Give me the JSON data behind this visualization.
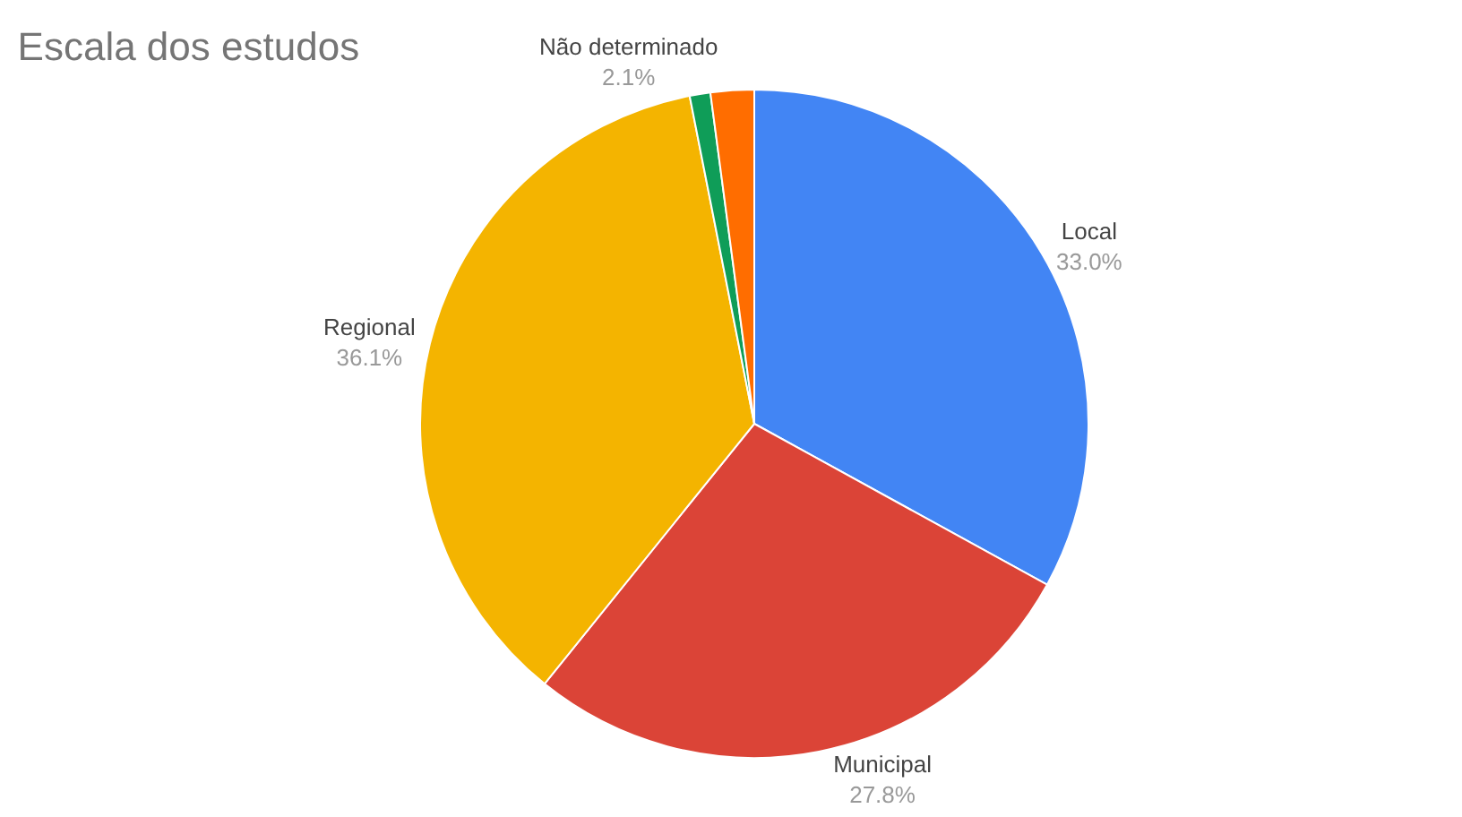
{
  "chart_data": {
    "type": "pie",
    "title": "Escala dos estudos",
    "categories": [
      "Local",
      "Municipal",
      "Regional",
      null,
      "Não determinado"
    ],
    "values": [
      33.0,
      27.8,
      36.1,
      1.0,
      2.1
    ],
    "value_labels": [
      "33.0%",
      "27.8%",
      "36.1%",
      null,
      "2.1%"
    ],
    "colors": [
      "#4285f4",
      "#db4437",
      "#f4b400",
      "#0f9d58",
      "#ff6d00"
    ],
    "legend": false
  }
}
